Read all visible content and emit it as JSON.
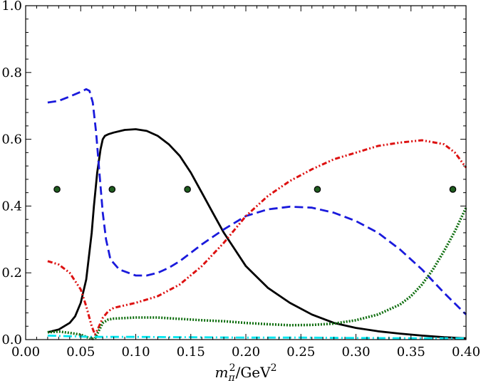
{
  "chart_data": {
    "type": "line",
    "xlabel": {
      "base": "m",
      "sub": "π",
      "sup": "2",
      "slash": "/",
      "unit": "GeV",
      "unit_sup": "2"
    },
    "ylabel": "",
    "xlim": [
      0.0,
      0.4
    ],
    "ylim": [
      0.0,
      1.0
    ],
    "x_ticks": [
      0.0,
      0.05,
      0.1,
      0.15,
      0.2,
      0.25,
      0.3,
      0.35,
      0.4
    ],
    "x_tick_labels": [
      "0.00",
      "0.05",
      "0.10",
      "0.15",
      "0.20",
      "0.25",
      "0.30",
      "0.35",
      "0.40"
    ],
    "y_ticks": [
      0.0,
      0.2,
      0.4,
      0.6,
      0.8,
      1.0
    ],
    "y_tick_labels": [
      "0.0",
      "0.2",
      "0.4",
      "0.6",
      "0.8",
      "1.0"
    ],
    "grid": false,
    "series": [
      {
        "style": "solid",
        "color": "#000000",
        "x": [
          0.02,
          0.03,
          0.04,
          0.045,
          0.05,
          0.055,
          0.06,
          0.062,
          0.065,
          0.068,
          0.07,
          0.072,
          0.075,
          0.08,
          0.09,
          0.1,
          0.11,
          0.12,
          0.13,
          0.14,
          0.15,
          0.16,
          0.17,
          0.18,
          0.19,
          0.2,
          0.22,
          0.24,
          0.26,
          0.28,
          0.3,
          0.32,
          0.34,
          0.36,
          0.38,
          0.4
        ],
        "y": [
          0.022,
          0.03,
          0.05,
          0.07,
          0.11,
          0.18,
          0.32,
          0.4,
          0.5,
          0.57,
          0.6,
          0.61,
          0.615,
          0.62,
          0.628,
          0.63,
          0.625,
          0.61,
          0.585,
          0.55,
          0.5,
          0.44,
          0.38,
          0.32,
          0.27,
          0.22,
          0.155,
          0.11,
          0.075,
          0.05,
          0.035,
          0.025,
          0.018,
          0.012,
          0.007,
          0.004
        ]
      },
      {
        "style": "dashed",
        "color": "#1a1adc",
        "x": [
          0.02,
          0.03,
          0.04,
          0.05,
          0.055,
          0.058,
          0.061,
          0.064,
          0.067,
          0.07,
          0.073,
          0.077,
          0.085,
          0.1,
          0.11,
          0.12,
          0.13,
          0.14,
          0.15,
          0.16,
          0.18,
          0.2,
          0.22,
          0.24,
          0.26,
          0.28,
          0.3,
          0.32,
          0.34,
          0.36,
          0.38,
          0.4
        ],
        "y": [
          0.71,
          0.715,
          0.728,
          0.742,
          0.75,
          0.745,
          0.71,
          0.62,
          0.5,
          0.38,
          0.3,
          0.24,
          0.21,
          0.192,
          0.192,
          0.2,
          0.215,
          0.235,
          0.26,
          0.285,
          0.33,
          0.37,
          0.39,
          0.398,
          0.395,
          0.38,
          0.355,
          0.32,
          0.27,
          0.21,
          0.14,
          0.075
        ]
      },
      {
        "style": "dash-dot-dot",
        "color": "#dd1111",
        "x": [
          0.02,
          0.03,
          0.04,
          0.05,
          0.055,
          0.06,
          0.063,
          0.066,
          0.07,
          0.075,
          0.08,
          0.1,
          0.12,
          0.14,
          0.16,
          0.18,
          0.2,
          0.22,
          0.24,
          0.26,
          0.28,
          0.3,
          0.32,
          0.34,
          0.36,
          0.38,
          0.39,
          0.4
        ],
        "y": [
          0.235,
          0.225,
          0.2,
          0.15,
          0.1,
          0.04,
          0.015,
          0.035,
          0.065,
          0.085,
          0.095,
          0.11,
          0.13,
          0.165,
          0.22,
          0.29,
          0.37,
          0.43,
          0.475,
          0.51,
          0.54,
          0.56,
          0.58,
          0.59,
          0.597,
          0.585,
          0.56,
          0.515
        ]
      },
      {
        "style": "dotted",
        "color": "#0f6e0f",
        "x": [
          0.02,
          0.03,
          0.04,
          0.05,
          0.055,
          0.06,
          0.063,
          0.067,
          0.07,
          0.075,
          0.08,
          0.1,
          0.12,
          0.14,
          0.16,
          0.18,
          0.2,
          0.22,
          0.24,
          0.26,
          0.28,
          0.3,
          0.32,
          0.34,
          0.35,
          0.36,
          0.37,
          0.38,
          0.39,
          0.4
        ],
        "y": [
          0.022,
          0.024,
          0.02,
          0.015,
          0.008,
          0.002,
          0.003,
          0.03,
          0.05,
          0.06,
          0.063,
          0.066,
          0.066,
          0.062,
          0.058,
          0.055,
          0.05,
          0.046,
          0.043,
          0.044,
          0.048,
          0.058,
          0.075,
          0.105,
          0.13,
          0.165,
          0.21,
          0.265,
          0.325,
          0.395
        ]
      },
      {
        "style": "dash-dot",
        "color": "#00e5ee",
        "x": [
          0.02,
          0.04,
          0.06,
          0.08,
          0.1,
          0.15,
          0.2,
          0.25,
          0.3,
          0.35,
          0.4
        ],
        "y": [
          0.012,
          0.01,
          0.008,
          0.008,
          0.008,
          0.007,
          0.006,
          0.006,
          0.005,
          0.004,
          0.004
        ]
      }
    ],
    "markers": {
      "style": "filled-circle",
      "color": "#1f5c1f",
      "x": [
        0.0285,
        0.0785,
        0.147,
        0.265,
        0.388
      ],
      "y": [
        0.45,
        0.45,
        0.45,
        0.45,
        0.45
      ]
    }
  }
}
